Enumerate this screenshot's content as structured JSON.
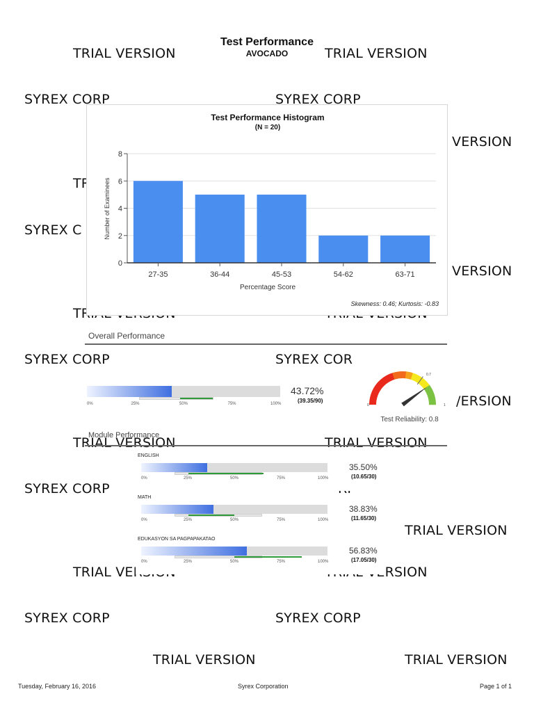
{
  "report": {
    "title": "Test Performance",
    "subtitle": "AVOCADO"
  },
  "watermarks": {
    "trial": "TRIAL VERSION",
    "corp": "SYREX CORP",
    "corp_partial": "SYREX COR",
    "corp_partial_2": "SYREX C",
    "trial_partial": "TR",
    "version": "VERSION",
    "version_partial": "/ERSION",
    "rp": "RP"
  },
  "histogram": {
    "title": "Test Performance Histogram",
    "subtitle": "(N = 20)",
    "stats_note": "Skewness: 0.46; Kurtosis: -0.83"
  },
  "chart_data": {
    "type": "bar",
    "title": "Test Performance Histogram",
    "subtitle": "(N = 20)",
    "categories": [
      "27-35",
      "36-44",
      "45-53",
      "54-62",
      "63-71"
    ],
    "values": [
      6,
      5,
      5,
      2,
      2
    ],
    "xlabel": "Percentage Score",
    "ylabel": "Number of Examinees",
    "ylim": [
      0,
      8
    ],
    "yticks": [
      "0",
      "2",
      "4",
      "6",
      "8"
    ],
    "grid": true,
    "bar_color": "#4a8ef0"
  },
  "overall": {
    "section_title": "Overall Performance",
    "percent_label": "43.72%",
    "fraction_label": "(39.35/90)",
    "percent": 43.72,
    "benchmark_range": [
      25,
      66
    ],
    "scale_labels": [
      "0%",
      "25%",
      "50%",
      "75%",
      "100%"
    ]
  },
  "reliability": {
    "label": "Test Reliability: 0.8",
    "value": 0.8,
    "marker_label": "0.7",
    "min_label": "0",
    "max_label": "1",
    "colors": [
      "#e8291c",
      "#f7a21b",
      "#f5e81c",
      "#7cc242"
    ]
  },
  "modules": {
    "section_title": "Module Performance",
    "items": [
      {
        "name": "ENGLISH",
        "percent_label": "35.50%",
        "fraction_label": "(10.65/30)",
        "percent": 35.5,
        "benchmark_range": [
          25,
          66
        ]
      },
      {
        "name": "MATH",
        "percent_label": "38.83%",
        "fraction_label": "(11.65/30)",
        "percent": 38.83,
        "benchmark_range": [
          25,
          50
        ]
      },
      {
        "name": "EDUKASYON SA PAGPAPAKATAO",
        "percent_label": "56.83%",
        "fraction_label": "(17.05/30)",
        "percent": 56.83,
        "benchmark_range": [
          50,
          87
        ]
      }
    ],
    "scale_labels": [
      "0%",
      "25%",
      "50%",
      "75%",
      "100%"
    ]
  },
  "footer": {
    "date": "Tuesday, February 16, 2016",
    "company": "Syrex Corporation",
    "page": "Page 1 of 1"
  }
}
